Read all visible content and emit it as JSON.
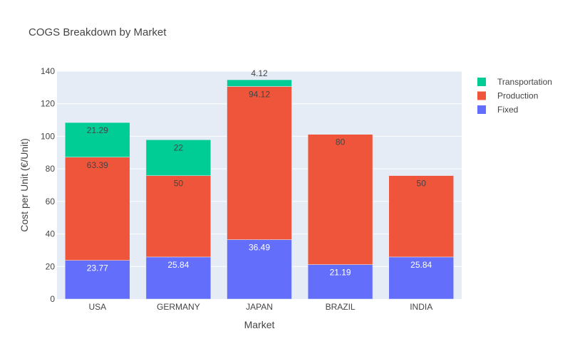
{
  "chart_data": {
    "type": "bar",
    "barmode": "stack",
    "title": "COGS Breakdown by Market",
    "xlabel": "Market",
    "ylabel": "Cost per Unit (€/Unit)",
    "ylim": [
      0,
      140
    ],
    "yticks": [
      0,
      20,
      40,
      60,
      80,
      100,
      120,
      140
    ],
    "categories": [
      "USA",
      "GERMANY",
      "JAPAN",
      "BRAZIL",
      "INDIA"
    ],
    "series": [
      {
        "name": "Fixed",
        "color": "#636efa",
        "label_color": "#ffffff",
        "values": [
          23.77,
          25.84,
          36.49,
          21.19,
          25.84
        ]
      },
      {
        "name": "Production",
        "color": "#ef553b",
        "label_color": "#444444",
        "values": [
          63.39,
          50,
          94.12,
          80,
          50
        ]
      },
      {
        "name": "Transportation",
        "color": "#00cc96",
        "label_color": "#444444",
        "values": [
          21.29,
          22,
          4.12,
          0,
          0
        ]
      }
    ],
    "grid": true,
    "legend_position": "top-right",
    "plot_background": "#e5ecf6"
  }
}
